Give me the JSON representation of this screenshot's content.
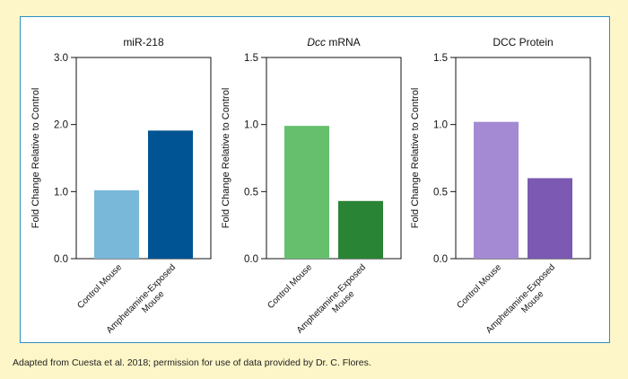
{
  "caption": "Adapted from Cuesta et al. 2018; permission for use of data provided by Dr. C. Flores.",
  "chart_data": [
    {
      "type": "bar",
      "title": "miR-218",
      "ylabel": "Fold Change Relative to Control",
      "ylim": [
        0,
        3.0
      ],
      "yticks": [
        "0.0",
        "1.0",
        "2.0",
        "3.0"
      ],
      "categories": [
        [
          "Control Mouse"
        ],
        [
          "Amphetamine-Exposed",
          "Mouse"
        ]
      ],
      "values": [
        1.02,
        1.91
      ],
      "colors": [
        "#79b8d8",
        "#005493"
      ]
    },
    {
      "type": "bar",
      "title_italic": "Dcc",
      "title": " mRNA",
      "ylabel": "Fold Change Relative to Control",
      "ylim": [
        0,
        1.5
      ],
      "yticks": [
        "0.0",
        "0.5",
        "1.0",
        "1.5"
      ],
      "categories": [
        [
          "Control Mouse"
        ],
        [
          "Amphetamine-Exposed",
          "Mouse"
        ]
      ],
      "values": [
        0.99,
        0.43
      ],
      "colors": [
        "#66bf6c",
        "#2a8435"
      ]
    },
    {
      "type": "bar",
      "title": "DCC Protein",
      "ylabel": "Fold Change Relative to Control",
      "ylim": [
        0,
        1.5
      ],
      "yticks": [
        "0.0",
        "0.5",
        "1.0",
        "1.5"
      ],
      "categories": [
        [
          "Control Mouse"
        ],
        [
          "Amphetamine-Exposed",
          "Mouse"
        ]
      ],
      "values": [
        1.02,
        0.6
      ],
      "colors": [
        "#a48ad2",
        "#7c59b2"
      ]
    }
  ]
}
